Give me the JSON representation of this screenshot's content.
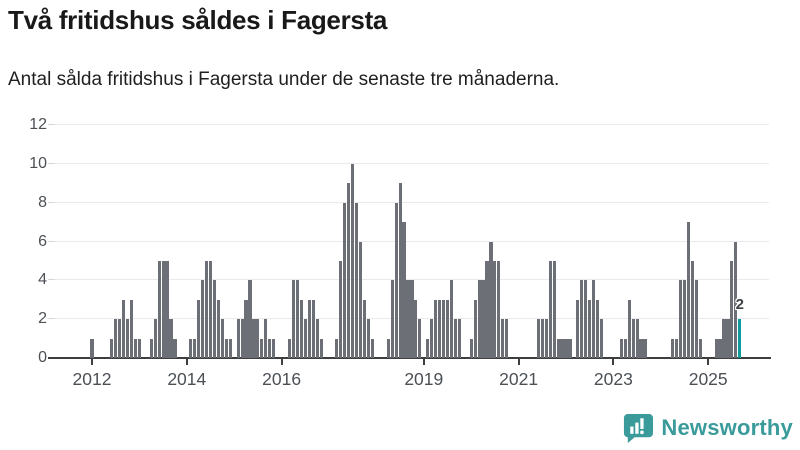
{
  "header": {
    "title": "Två fritidshus såldes i Fagersta",
    "subtitle": "Antal sålda fritidshus i Fagersta under de senaste tre månaderna."
  },
  "chart_data": {
    "type": "bar",
    "title": "Två fritidshus såldes i Fagersta",
    "subtitle": "Antal sålda fritidshus i Fagersta under de senaste tre månaderna.",
    "x_unit": "month",
    "start_month": "2012-01",
    "values": [
      1,
      0,
      0,
      0,
      0,
      1,
      2,
      2,
      3,
      2,
      3,
      1,
      1,
      0,
      0,
      1,
      2,
      5,
      5,
      5,
      2,
      1,
      0,
      0,
      0,
      1,
      1,
      3,
      4,
      5,
      5,
      4,
      3,
      2,
      1,
      1,
      0,
      2,
      2,
      3,
      4,
      2,
      2,
      1,
      2,
      1,
      1,
      0,
      0,
      0,
      1,
      4,
      4,
      3,
      2,
      3,
      3,
      2,
      1,
      0,
      0,
      0,
      1,
      5,
      8,
      9,
      10,
      8,
      6,
      3,
      2,
      1,
      0,
      0,
      0,
      1,
      4,
      8,
      9,
      7,
      4,
      4,
      3,
      2,
      0,
      1,
      2,
      3,
      3,
      3,
      3,
      4,
      2,
      2,
      0,
      0,
      1,
      3,
      4,
      4,
      5,
      6,
      5,
      5,
      2,
      2,
      0,
      0,
      0,
      0,
      0,
      0,
      0,
      2,
      2,
      2,
      5,
      5,
      1,
      1,
      1,
      1,
      0,
      3,
      4,
      4,
      3,
      4,
      3,
      2,
      0,
      0,
      0,
      0,
      1,
      1,
      3,
      2,
      2,
      1,
      1,
      0,
      0,
      0,
      0,
      0,
      0,
      1,
      1,
      4,
      4,
      7,
      5,
      4,
      1,
      0,
      0,
      0,
      1,
      1,
      2,
      2,
      5,
      6,
      2
    ],
    "highlight": {
      "index_from_end": 0,
      "value": 2,
      "label": "2",
      "color": "#0f9b9b"
    },
    "bar_color": "#6c6f75",
    "x_tick_labels": [
      "2012",
      "2014",
      "2016",
      "2019",
      "2021",
      "2023",
      "2025"
    ],
    "x_tick_start_year": 2012,
    "y_ticks": [
      0,
      2,
      4,
      6,
      8,
      10,
      12
    ],
    "ylim": [
      0,
      12
    ],
    "grid": true,
    "legend": false
  },
  "footer": {
    "brand": "Newsworthy",
    "brand_color": "#3b9a9a",
    "icon": "newsworthy-chart-bubble-icon"
  }
}
